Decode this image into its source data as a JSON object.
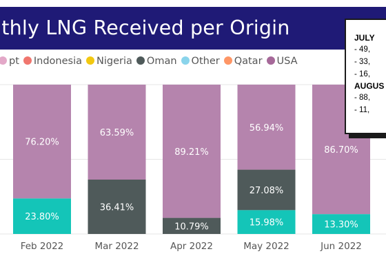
{
  "header": {
    "title": "nthly LNG Received per Origin"
  },
  "legend": [
    {
      "label": "pt",
      "color": "#e3a8c8",
      "icon": "circle-icon"
    },
    {
      "label": "Indonesia",
      "color": "#f0766e",
      "icon": "circle-icon"
    },
    {
      "label": "Nigeria",
      "color": "#f2c811",
      "icon": "circle-icon"
    },
    {
      "label": "Oman",
      "color": "#4f5a5a",
      "icon": "circle-icon"
    },
    {
      "label": "Other",
      "color": "#8ad4eb",
      "icon": "circle-icon"
    },
    {
      "label": "Qatar",
      "color": "#fe9666",
      "icon": "circle-icon"
    },
    {
      "label": "USA",
      "color": "#a66999",
      "icon": "circle-icon"
    }
  ],
  "notes": [
    {
      "month": "JULY",
      "lines": [
        "-  49,",
        "-  33,",
        "-  16,"
      ]
    },
    {
      "month": "AUGUS",
      "lines": [
        "-  88,",
        "-  11,"
      ]
    }
  ],
  "chart_data": {
    "type": "bar",
    "stacked": true,
    "percent": true,
    "categories": [
      "Feb 2022",
      "Mar 2022",
      "Apr 2022",
      "May 2022",
      "Jun 2022"
    ],
    "ylim": [
      0,
      100
    ],
    "series": [
      {
        "name": "Other",
        "color": "#14c5b8",
        "values": [
          23.8,
          0,
          0,
          15.98,
          13.3
        ],
        "labels": [
          "23.80%",
          "",
          "",
          "15.98%",
          "13.30%"
        ]
      },
      {
        "name": "Oman",
        "color": "#4f5a5a",
        "values": [
          0,
          36.41,
          10.79,
          27.08,
          0
        ],
        "labels": [
          "",
          "36.41%",
          "10.79%",
          "27.08%",
          ""
        ]
      },
      {
        "name": "USA",
        "color": "#b584ad",
        "values": [
          76.2,
          63.59,
          89.21,
          56.94,
          86.7
        ],
        "labels": [
          "76.20%",
          "63.59%",
          "89.21%",
          "56.94%",
          "86.70%"
        ]
      }
    ]
  }
}
